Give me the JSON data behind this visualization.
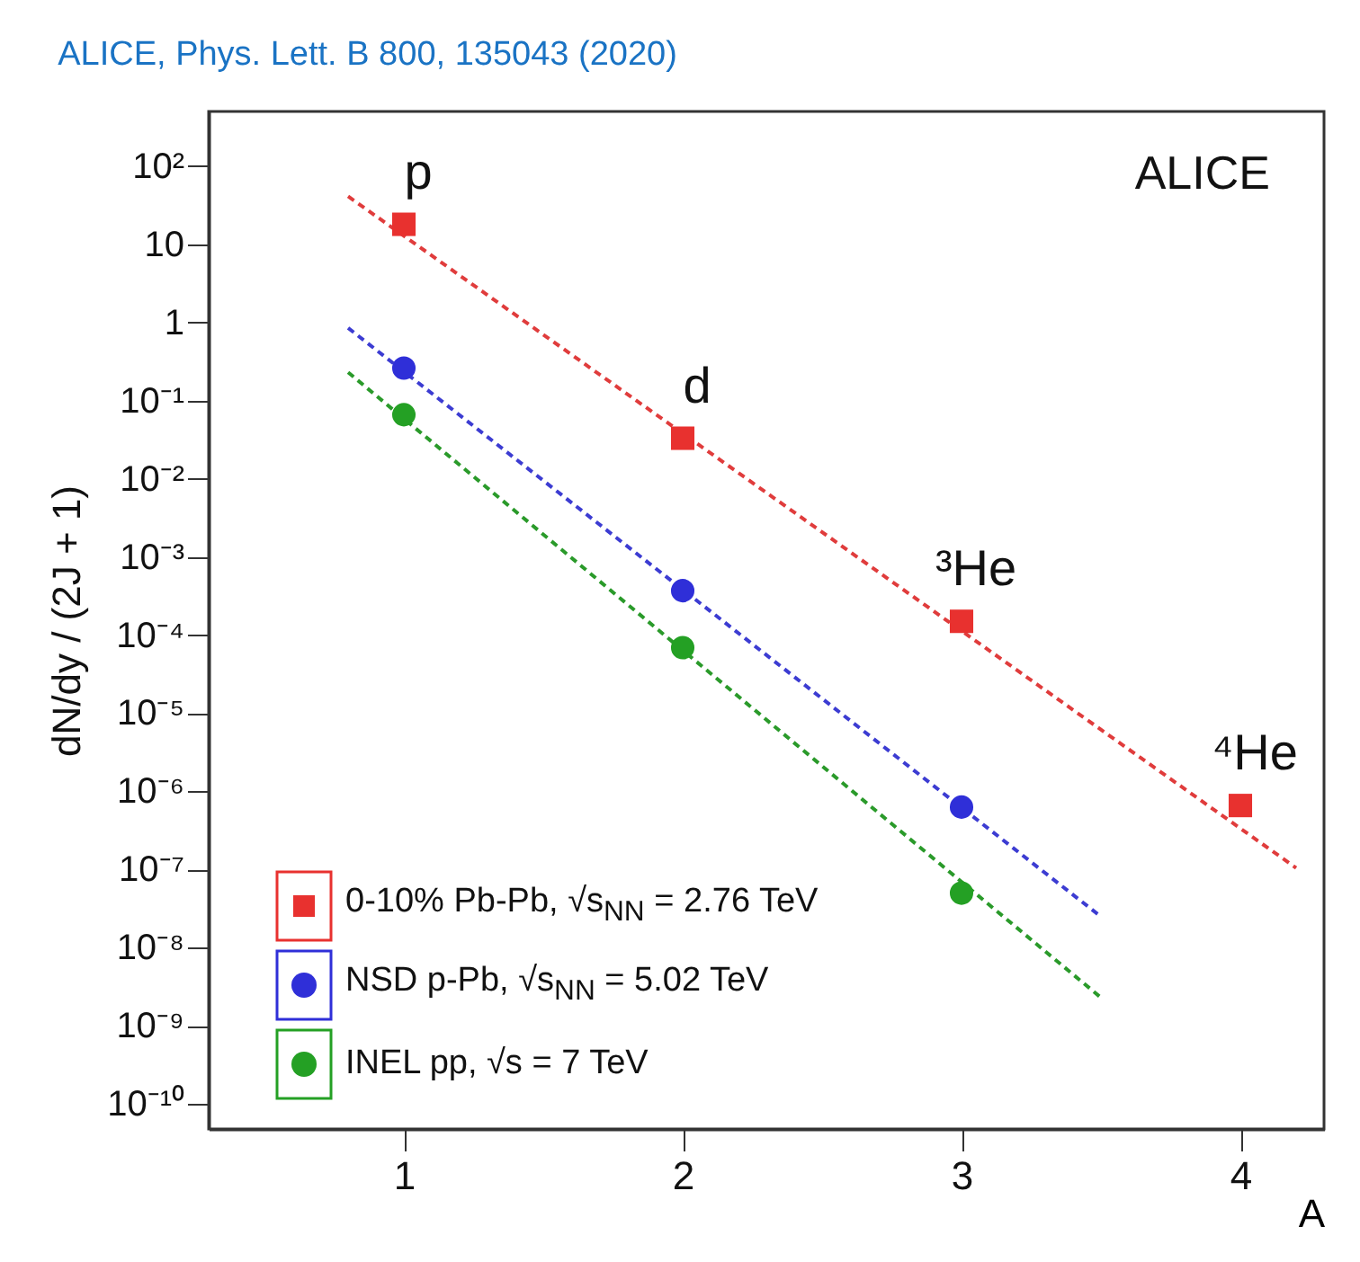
{
  "chart_data": {
    "type": "scatter",
    "title": "ALICE, Phys. Lett. B 800, 135043 (2020)",
    "xlabel": "A",
    "ylabel": "dN/dy / (2J + 1)",
    "xlim": [
      0.3,
      4.3
    ],
    "xticks": [
      1,
      2,
      3,
      4
    ],
    "ylim": [
      4.8e-11,
      500
    ],
    "log": "y",
    "yticks": [
      {
        "value": 100,
        "label": "10²"
      },
      10,
      1,
      {
        "value": 0.1,
        "label": "10⁻¹"
      },
      {
        "value": 0.01,
        "label": "10⁻²"
      },
      {
        "value": 0.001,
        "label": "10⁻³"
      },
      {
        "value": 0.0001,
        "label": "10⁻⁴"
      },
      {
        "value": 1e-05,
        "label": "10⁻⁵"
      },
      {
        "value": 1e-06,
        "label": "10⁻⁶"
      },
      {
        "value": 1e-07,
        "label": "10⁻⁷"
      },
      {
        "value": 1e-08,
        "label": "10⁻⁸"
      },
      {
        "value": 1e-09,
        "label": "10⁻⁹"
      },
      {
        "value": 1e-10,
        "label": "10⁻¹⁰"
      }
    ],
    "grid": false,
    "legend": "bottom left",
    "series": [
      {
        "type": "line",
        "color": "#e03c3c",
        "line_style": "dashed",
        "marker": "none",
        "x": [
          0.8,
          4.2
        ],
        "values": [
          41,
          1.05e-07
        ]
      },
      {
        "type": "line",
        "color": "#3c3cd2",
        "line_style": "dashed",
        "marker": "none",
        "x": [
          0.8,
          3.5
        ],
        "values": [
          0.85,
          2.5e-08
        ]
      },
      {
        "type": "line",
        "color": "#2a9a2a",
        "line_style": "dashed",
        "marker": "none",
        "x": [
          0.8,
          3.5
        ],
        "values": [
          0.23,
          2.3e-09
        ]
      },
      {
        "name": "0-10% Pb-Pb, √s$_{NN}$ = 2.76 TeV",
        "color": "#e8312f",
        "marker": "square",
        "x": [
          1,
          2,
          3,
          4
        ],
        "values": [
          18,
          0.033,
          0.00015,
          6.6e-07
        ]
      },
      {
        "name": "NSD p-Pb, √s$_{NN}$ = 5.02 TeV",
        "color": "#2f2fd8",
        "marker": "circle",
        "x": [
          1,
          2,
          3
        ],
        "values": [
          0.26,
          0.00037,
          6.3e-07
        ]
      },
      {
        "name": "INEL pp, √s = 7 TeV",
        "color": "#24a024",
        "marker": "circle",
        "x": [
          1,
          2,
          3
        ],
        "values": [
          0.066,
          6.9e-05,
          5e-08
        ]
      }
    ],
    "annotations": [
      "ALICE",
      {
        "text": "p",
        "x": 1,
        "y": 18
      },
      {
        "text": "d",
        "x": 2,
        "y": 0.033
      },
      {
        "text": "³He",
        "x": 3,
        "y": 0.00015
      },
      {
        "text": "⁴He",
        "x": 4,
        "y": 6.6e-07
      }
    ]
  }
}
